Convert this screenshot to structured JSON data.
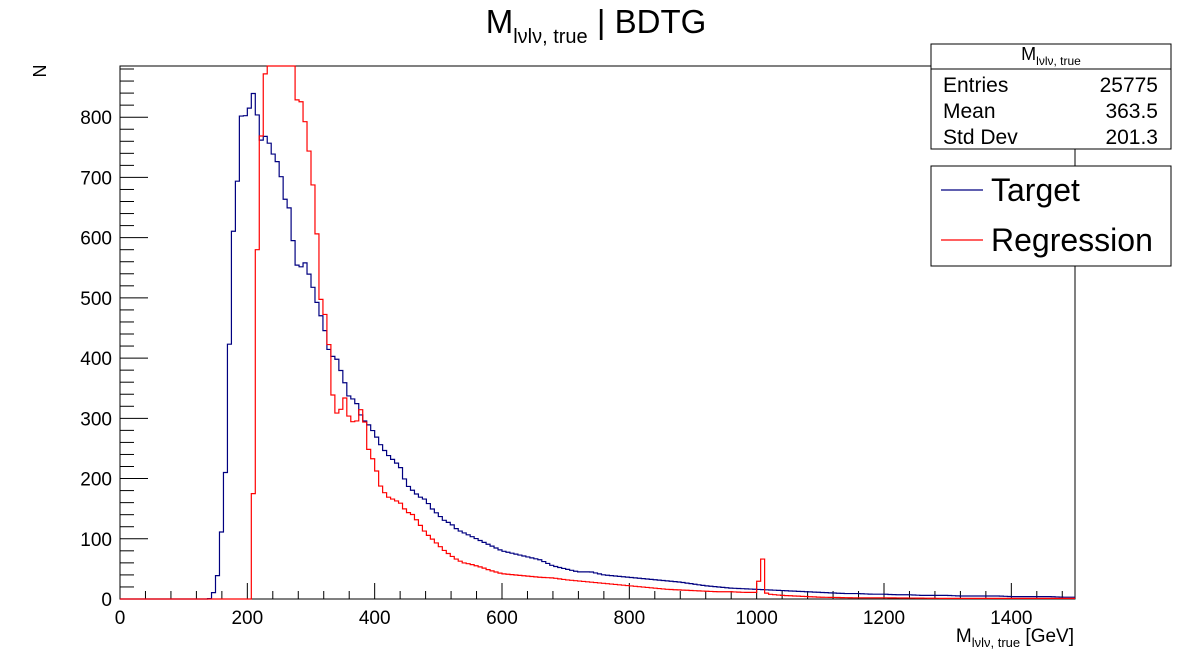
{
  "chart_data": {
    "type": "histogram",
    "title": {
      "main": "M",
      "sub": "lνlν, true",
      "suffix": " | BDTG"
    },
    "xlabel": {
      "main": "M",
      "sub": "lνlν, true",
      "suffix": " [GeV]"
    },
    "ylabel": "N",
    "xlim": [
      0,
      1500
    ],
    "ylim": [
      0,
      885
    ],
    "bin_width": 6.25,
    "x_ticks": [
      "0",
      "200",
      "400",
      "600",
      "800",
      "1000",
      "1200",
      "1400"
    ],
    "y_ticks": [
      "0",
      "100",
      "200",
      "300",
      "400",
      "500",
      "600",
      "700",
      "800"
    ],
    "grid": false,
    "legend_position": "top-right",
    "stats": {
      "title": {
        "main": "M",
        "sub": "lνlν, true"
      },
      "rows": [
        {
          "label": "Entries",
          "value": "25775"
        },
        {
          "label": "Mean",
          "value": "363.5"
        },
        {
          "label": "Std Dev",
          "value": "201.3"
        }
      ]
    },
    "series": [
      {
        "name": "Target",
        "color": "#000080",
        "points": [
          [
            0,
            0
          ],
          [
            140,
            0
          ],
          [
            145,
            5
          ],
          [
            150,
            20
          ],
          [
            155,
            50
          ],
          [
            160,
            120
          ],
          [
            165,
            190
          ],
          [
            170,
            350
          ],
          [
            175,
            545
          ],
          [
            180,
            650
          ],
          [
            185,
            700
          ],
          [
            190,
            805
          ],
          [
            195,
            780
          ],
          [
            200,
            840
          ],
          [
            205,
            800
          ],
          [
            210,
            845
          ],
          [
            215,
            810
          ],
          [
            220,
            760
          ],
          [
            230,
            770
          ],
          [
            240,
            740
          ],
          [
            250,
            720
          ],
          [
            260,
            660
          ],
          [
            265,
            655
          ],
          [
            270,
            610
          ],
          [
            275,
            570
          ],
          [
            280,
            545
          ],
          [
            290,
            560
          ],
          [
            300,
            530
          ],
          [
            310,
            490
          ],
          [
            320,
            455
          ],
          [
            330,
            405
          ],
          [
            340,
            400
          ],
          [
            350,
            370
          ],
          [
            360,
            335
          ],
          [
            370,
            330
          ],
          [
            380,
            300
          ],
          [
            390,
            290
          ],
          [
            400,
            275
          ],
          [
            410,
            255
          ],
          [
            420,
            240
          ],
          [
            430,
            230
          ],
          [
            440,
            220
          ],
          [
            450,
            190
          ],
          [
            460,
            180
          ],
          [
            470,
            170
          ],
          [
            480,
            165
          ],
          [
            490,
            150
          ],
          [
            500,
            140
          ],
          [
            510,
            130
          ],
          [
            520,
            125
          ],
          [
            530,
            115
          ],
          [
            540,
            110
          ],
          [
            550,
            105
          ],
          [
            560,
            100
          ],
          [
            570,
            95
          ],
          [
            580,
            90
          ],
          [
            590,
            85
          ],
          [
            600,
            80
          ],
          [
            620,
            75
          ],
          [
            640,
            70
          ],
          [
            660,
            65
          ],
          [
            680,
            55
          ],
          [
            700,
            50
          ],
          [
            720,
            45
          ],
          [
            740,
            45
          ],
          [
            760,
            40
          ],
          [
            780,
            38
          ],
          [
            800,
            36
          ],
          [
            820,
            34
          ],
          [
            840,
            32
          ],
          [
            860,
            30
          ],
          [
            880,
            28
          ],
          [
            900,
            25
          ],
          [
            920,
            22
          ],
          [
            940,
            20
          ],
          [
            960,
            18
          ],
          [
            980,
            17
          ],
          [
            1000,
            16
          ],
          [
            1020,
            15
          ],
          [
            1040,
            14
          ],
          [
            1060,
            13
          ],
          [
            1080,
            12
          ],
          [
            1100,
            11
          ],
          [
            1120,
            10
          ],
          [
            1140,
            9
          ],
          [
            1160,
            9
          ],
          [
            1180,
            8
          ],
          [
            1200,
            8
          ],
          [
            1220,
            7
          ],
          [
            1240,
            7
          ],
          [
            1260,
            6
          ],
          [
            1280,
            6
          ],
          [
            1300,
            6
          ],
          [
            1320,
            5
          ],
          [
            1340,
            5
          ],
          [
            1360,
            5
          ],
          [
            1380,
            5
          ],
          [
            1400,
            4
          ],
          [
            1420,
            4
          ],
          [
            1440,
            4
          ],
          [
            1460,
            4
          ],
          [
            1480,
            3
          ],
          [
            1500,
            3
          ]
        ]
      },
      {
        "name": "Regression",
        "color": "#ff0000",
        "points": [
          [
            0,
            0
          ],
          [
            200,
            0
          ],
          [
            205,
            0
          ],
          [
            210,
            200
          ],
          [
            215,
            560
          ],
          [
            220,
            720
          ],
          [
            225,
            850
          ],
          [
            230,
            885
          ],
          [
            240,
            885
          ],
          [
            250,
            885
          ],
          [
            260,
            885
          ],
          [
            270,
            885
          ],
          [
            275,
            885
          ],
          [
            280,
            795
          ],
          [
            285,
            830
          ],
          [
            290,
            800
          ],
          [
            295,
            740
          ],
          [
            300,
            750
          ],
          [
            305,
            650
          ],
          [
            310,
            600
          ],
          [
            315,
            500
          ],
          [
            320,
            480
          ],
          [
            325,
            460
          ],
          [
            330,
            400
          ],
          [
            335,
            330
          ],
          [
            340,
            310
          ],
          [
            345,
            300
          ],
          [
            350,
            340
          ],
          [
            355,
            330
          ],
          [
            360,
            300
          ],
          [
            370,
            290
          ],
          [
            380,
            320
          ],
          [
            385,
            290
          ],
          [
            390,
            250
          ],
          [
            400,
            225
          ],
          [
            410,
            185
          ],
          [
            420,
            170
          ],
          [
            430,
            165
          ],
          [
            440,
            160
          ],
          [
            450,
            145
          ],
          [
            460,
            140
          ],
          [
            470,
            125
          ],
          [
            480,
            110
          ],
          [
            490,
            100
          ],
          [
            500,
            90
          ],
          [
            510,
            80
          ],
          [
            520,
            72
          ],
          [
            530,
            65
          ],
          [
            540,
            60
          ],
          [
            550,
            58
          ],
          [
            560,
            55
          ],
          [
            570,
            52
          ],
          [
            580,
            48
          ],
          [
            590,
            45
          ],
          [
            600,
            42
          ],
          [
            620,
            40
          ],
          [
            640,
            38
          ],
          [
            660,
            36
          ],
          [
            680,
            35
          ],
          [
            700,
            32
          ],
          [
            720,
            30
          ],
          [
            740,
            28
          ],
          [
            760,
            26
          ],
          [
            780,
            24
          ],
          [
            800,
            22
          ],
          [
            820,
            20
          ],
          [
            840,
            18
          ],
          [
            860,
            16
          ],
          [
            880,
            15
          ],
          [
            900,
            14
          ],
          [
            920,
            13
          ],
          [
            940,
            12
          ],
          [
            960,
            12
          ],
          [
            980,
            11
          ],
          [
            1000,
            11
          ],
          [
            1010,
            70
          ],
          [
            1015,
            10
          ],
          [
            1020,
            8
          ],
          [
            1040,
            6
          ],
          [
            1060,
            5
          ],
          [
            1080,
            4
          ],
          [
            1100,
            3
          ],
          [
            1150,
            2
          ],
          [
            1200,
            2
          ],
          [
            1300,
            1
          ],
          [
            1400,
            1
          ],
          [
            1500,
            1
          ]
        ]
      }
    ]
  }
}
